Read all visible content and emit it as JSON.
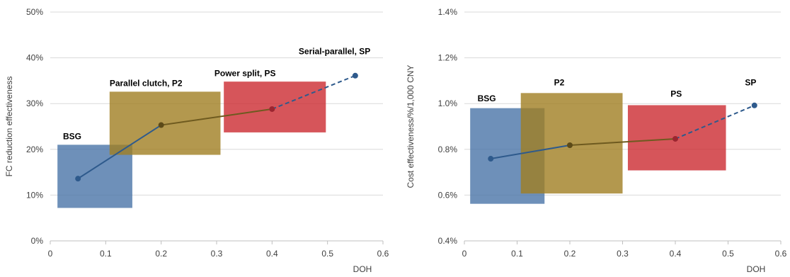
{
  "chart_data": [
    {
      "type": "line",
      "xlabel": "DOH",
      "ylabel": "FC reduction effectiveness",
      "xlim": [
        0,
        0.6
      ],
      "ylim": [
        0,
        0.5
      ],
      "x_ticks": [
        "0",
        "0.1",
        "0.2",
        "0.3",
        "0.4",
        "0.5",
        "0.6"
      ],
      "y_ticks": [
        "0%",
        "10%",
        "20%",
        "30%",
        "40%",
        "50%"
      ],
      "grid": "horizontal",
      "line_points": [
        {
          "x": 0.05,
          "y": 0.136
        },
        {
          "x": 0.2,
          "y": 0.253
        },
        {
          "x": 0.4,
          "y": 0.288
        },
        {
          "x": 0.55,
          "y": 0.361
        }
      ],
      "dashed_from_index": 2,
      "boxes": [
        {
          "label": "BSG",
          "x0": 0.013,
          "x1": 0.148,
          "y0": 0.072,
          "y1": 0.21,
          "color": "#4a74a8",
          "label_x": 0.023,
          "label_y": 0.222
        },
        {
          "label": "Parallel clutch, P2",
          "x0": 0.107,
          "x1": 0.307,
          "y0": 0.188,
          "y1": 0.326,
          "color": "#a07e22",
          "label_x": 0.107,
          "label_y": 0.338
        },
        {
          "label": "Power split, PS",
          "x0": 0.313,
          "x1": 0.497,
          "y0": 0.237,
          "y1": 0.348,
          "color": "#cc2a31",
          "label_x": 0.296,
          "label_y": 0.36
        },
        {
          "label": "Serial-parallel, SP",
          "x0": null,
          "x1": null,
          "y0": null,
          "y1": null,
          "color": null,
          "label_x": 0.448,
          "label_y": 0.408
        }
      ]
    },
    {
      "type": "line",
      "xlabel": "DOH",
      "ylabel": "Cost effectiveness/%/1,000 CNY",
      "xlim": [
        0,
        0.6
      ],
      "ylim": [
        0.004,
        0.014
      ],
      "x_ticks": [
        "0",
        "0.1",
        "0.2",
        "0.3",
        "0.4",
        "0.5",
        "0.6"
      ],
      "y_ticks": [
        "0.4%",
        "0.6%",
        "0.8%",
        "1.0%",
        "1.2%",
        "1.4%"
      ],
      "grid": "horizontal",
      "line_points": [
        {
          "x": 0.05,
          "y": 0.00759
        },
        {
          "x": 0.2,
          "y": 0.00818
        },
        {
          "x": 0.4,
          "y": 0.00846
        },
        {
          "x": 0.55,
          "y": 0.00992
        }
      ],
      "dashed_from_index": 2,
      "boxes": [
        {
          "label": "BSG",
          "x0": 0.011,
          "x1": 0.152,
          "y0": 0.00562,
          "y1": 0.0098,
          "color": "#4a74a8",
          "label_x": 0.025,
          "label_y": 0.0101
        },
        {
          "label": "P2",
          "x0": 0.107,
          "x1": 0.3,
          "y0": 0.00607,
          "y1": 0.01046,
          "color": "#a07e22",
          "label_x": 0.17,
          "label_y": 0.0108
        },
        {
          "label": "PS",
          "x0": 0.31,
          "x1": 0.496,
          "y0": 0.00708,
          "y1": 0.00993,
          "color": "#cc2a31",
          "label_x": 0.391,
          "label_y": 0.0103
        },
        {
          "label": "SP",
          "x0": null,
          "x1": null,
          "y0": null,
          "y1": null,
          "color": null,
          "label_x": 0.532,
          "label_y": 0.0108
        }
      ]
    }
  ],
  "colors": {
    "line_blue": "#2e5a8c",
    "line_gold": "#6e5a1f",
    "line_red": "#a1272e",
    "marker_blue": "#2e5a8c",
    "marker_gold": "#5c4a18",
    "marker_red": "#9c2530",
    "grid": "#d9d9d9",
    "axis": "#bfbfbf"
  }
}
